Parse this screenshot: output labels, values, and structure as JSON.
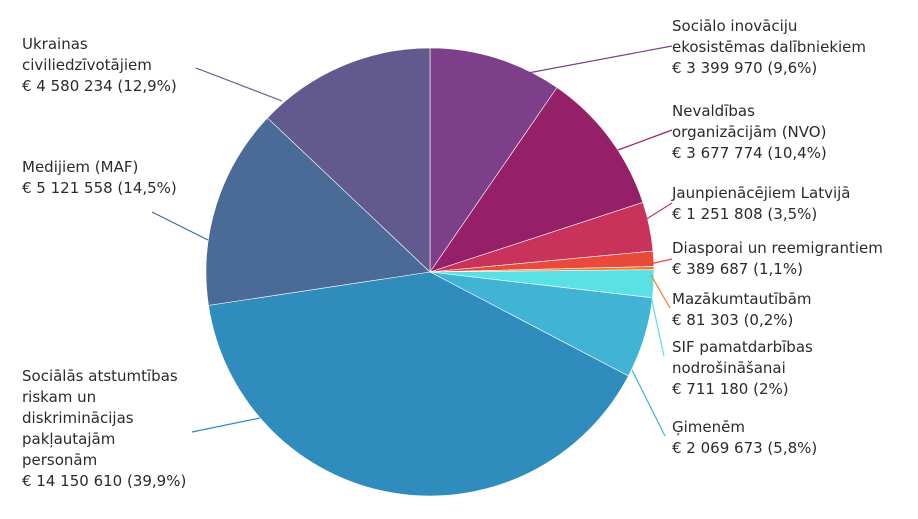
{
  "chart_data": {
    "type": "pie",
    "slices": [
      {
        "label_lines": [
          "Sociālo inovāciju",
          "ekosistēmas dalībniekiem"
        ],
        "value_text": "€ 3 399 970 (9,6%)",
        "value": 3399970,
        "percent": 9.6,
        "color": "#7e3f8a"
      },
      {
        "label_lines": [
          "Nevaldības",
          "organizācijām (NVO)"
        ],
        "value_text": "€ 3 677 774 (10,4%)",
        "value": 3677774,
        "percent": 10.4,
        "color": "#962068"
      },
      {
        "label_lines": [
          "Jaunpienācējiem Latvijā"
        ],
        "value_text": "€ 1 251 808 (3,5%)",
        "value": 1251808,
        "percent": 3.5,
        "color": "#c8325b"
      },
      {
        "label_lines": [
          "Diasporai un reemigrantiem"
        ],
        "value_text": "€ 389 687 (1,1%)",
        "value": 389687,
        "percent": 1.1,
        "color": "#ea4a3c"
      },
      {
        "label_lines": [
          "Mazākumtautībām"
        ],
        "value_text": "€ 81 303 (0,2%)",
        "value": 81303,
        "percent": 0.2,
        "color": "#f07a2b"
      },
      {
        "label_lines": [
          "SIF pamatdarbības",
          "nodrošināšanai"
        ],
        "value_text": "€ 711 180 (2%)",
        "value": 711180,
        "percent": 2,
        "color": "#59e1e6"
      },
      {
        "label_lines": [
          "Ģimenēm"
        ],
        "value_text": "€ 2 069 673 (5,8%)",
        "value": 2069673,
        "percent": 5.8,
        "color": "#41b4d6"
      },
      {
        "label_lines": [
          "Sociālās atstumtības",
          "riskam un",
          "diskriminācijas",
          "pakļautajām",
          "personām"
        ],
        "value_text": "€ 14 150 610 (39,9%)",
        "value": 14150610,
        "percent": 39.9,
        "color": "#2f8cbc"
      },
      {
        "label_lines": [
          "Medijiem (MAF)"
        ],
        "value_text": "€ 5 121 558 (14,5%)",
        "value": 5121558,
        "percent": 14.5,
        "color": "#4a6b98"
      },
      {
        "label_lines": [
          "Ukrainas",
          "civiliedzīvotājiem"
        ],
        "value_text": "€ 4 580 234 (12,9%)",
        "value": 4580234,
        "percent": 12.9,
        "color": "#625a8e"
      }
    ]
  }
}
